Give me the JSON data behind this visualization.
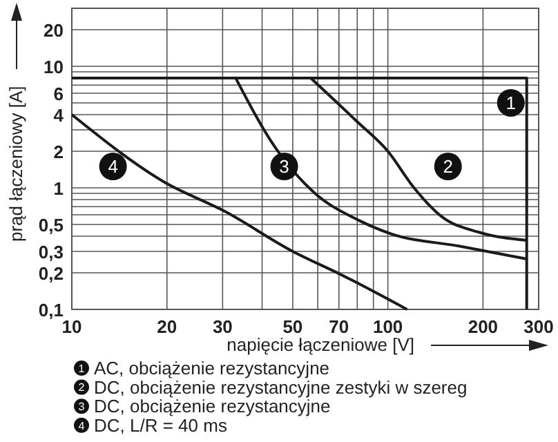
{
  "chart_data": {
    "type": "line",
    "xlabel": "napięcie łączeniowe [V]",
    "ylabel": "prąd łączeniowy [A]",
    "log": "xy",
    "grid": true,
    "legend": "bottom",
    "line_style": "solid",
    "xlim": [
      10,
      300
    ],
    "ylim": [
      0.1,
      30
    ],
    "xticks": [
      10,
      20,
      30,
      {
        "value": 40,
        "label": null
      },
      50,
      {
        "value": 60,
        "label": null
      },
      70,
      {
        "value": 80,
        "label": null
      },
      {
        "value": 90,
        "label": null
      },
      100,
      200,
      300
    ],
    "yticks": [
      {
        "value": 0.1,
        "label": "0,1"
      },
      {
        "value": 0.2,
        "label": "0,2"
      },
      {
        "value": 0.3,
        "label": "0,3"
      },
      {
        "value": 0.4,
        "label": null
      },
      {
        "value": 0.5,
        "label": "0,5"
      },
      {
        "value": 0.6,
        "label": null
      },
      {
        "value": 0.7,
        "label": null
      },
      {
        "value": 0.8,
        "label": null
      },
      {
        "value": 0.9,
        "label": null
      },
      1,
      2,
      {
        "value": 3,
        "label": null
      },
      4,
      {
        "value": 5,
        "label": null
      },
      6,
      {
        "value": 7,
        "label": null
      },
      {
        "value": 8,
        "label": null
      },
      {
        "value": 9,
        "label": null
      },
      10,
      20
    ],
    "series": [
      {
        "name": "AC, obciążenie rezystancyjne",
        "color": "#1a1a1a",
        "x": [
          10,
          275,
          275
        ],
        "values": [
          8,
          8,
          0.1
        ]
      },
      {
        "name": "DC, obciążenie rezystancyjne zestyki w szereg",
        "color": "#1a1a1a",
        "x": [
          57,
          80,
          100,
          121,
          148,
          195,
          275
        ],
        "values": [
          8,
          3.5,
          2.0,
          1.0,
          0.58,
          0.43,
          0.37
        ]
      },
      {
        "name": "DC, obciążenie rezystancyjne",
        "color": "#1a1a1a",
        "x": [
          33,
          44,
          58,
          81,
          102,
          170,
          275
        ],
        "values": [
          8,
          2.15,
          0.93,
          0.54,
          0.42,
          0.33,
          0.26
        ]
      },
      {
        "name": "DC, L/R = 40 ms",
        "color": "#1a1a1a",
        "x": [
          10,
          19.8,
          30.5,
          50,
          72,
          115
        ],
        "values": [
          4,
          1.1,
          0.64,
          0.3,
          0.19,
          0.1
        ]
      }
    ],
    "annotations": [
      {
        "text": "1",
        "x": 245,
        "y": 5
      },
      {
        "text": "2",
        "x": 155,
        "y": 1.5
      },
      {
        "text": "3",
        "x": 47,
        "y": 1.5
      },
      {
        "text": "4",
        "x": 13.5,
        "y": 1.5
      }
    ]
  }
}
